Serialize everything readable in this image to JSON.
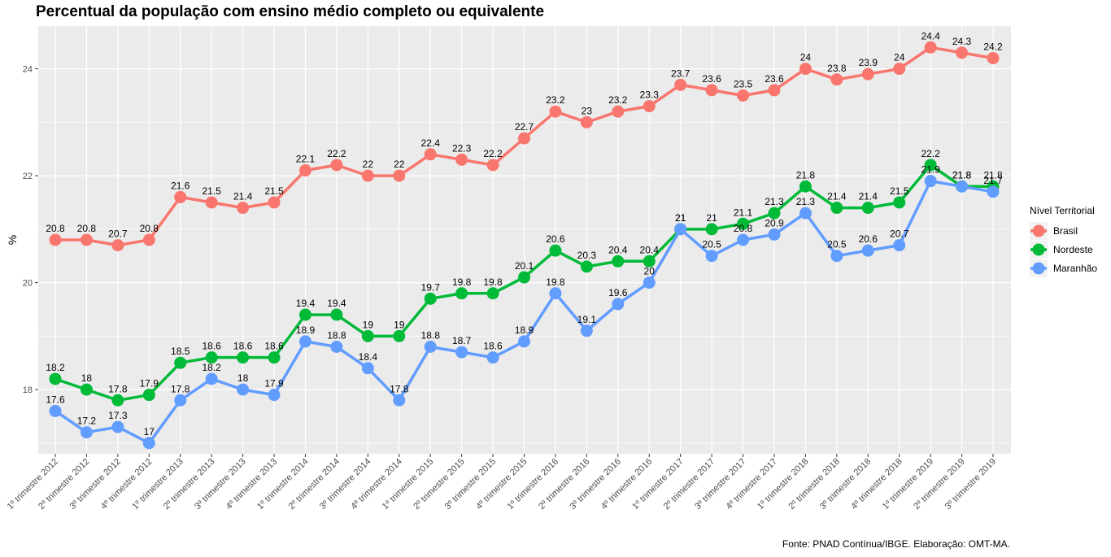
{
  "chart_data": {
    "type": "line",
    "title": "Percentual da população com ensino médio completo ou equivalente",
    "xlabel": "",
    "ylabel": "%",
    "ylim": [
      16.8,
      24.8
    ],
    "yticks": [
      18,
      20,
      22,
      24
    ],
    "grid": true,
    "caption": "Fonte: PNAD Contínua/IBGE. Elaboração: OMT-MA.",
    "legend": {
      "title": "Nível Territorial",
      "position": "right"
    },
    "categories": [
      "1º trimestre 2012",
      "2º trimestre 2012",
      "3º trimestre 2012",
      "4º trimestre 2012",
      "1º trimestre 2013",
      "2º trimestre 2013",
      "3º trimestre 2013",
      "4º trimestre 2013",
      "1º trimestre 2014",
      "2º trimestre 2014",
      "3º trimestre 2014",
      "4º trimestre 2014",
      "1º trimestre 2015",
      "2º trimestre 2015",
      "3º trimestre 2015",
      "4º trimestre 2015",
      "1º trimestre 2016",
      "2º trimestre 2016",
      "3º trimestre 2016",
      "4º trimestre 2016",
      "1º trimestre 2017",
      "2º trimestre 2017",
      "3º trimestre 2017",
      "4º trimestre 2017",
      "1º trimestre 2018",
      "2º trimestre 2018",
      "3º trimestre 2018",
      "4º trimestre 2018",
      "1º trimestre 2019",
      "2º trimestre 2019",
      "3º trimestre 2019"
    ],
    "series": [
      {
        "name": "Brasil",
        "color": "#F8766D",
        "values": [
          20.8,
          20.8,
          20.7,
          20.8,
          21.6,
          21.5,
          21.4,
          21.5,
          22.1,
          22.2,
          22,
          22,
          22.4,
          22.3,
          22.2,
          22.7,
          23.2,
          23,
          23.2,
          23.3,
          23.7,
          23.6,
          23.5,
          23.6,
          24,
          23.8,
          23.9,
          24,
          24.4,
          24.3,
          24.2
        ]
      },
      {
        "name": "Nordeste",
        "color": "#00BA38",
        "values": [
          18.2,
          18,
          17.8,
          17.9,
          18.5,
          18.6,
          18.6,
          18.6,
          19.4,
          19.4,
          19,
          19,
          19.7,
          19.8,
          19.8,
          20.1,
          20.6,
          20.3,
          20.4,
          20.4,
          21,
          21,
          21.1,
          21.3,
          21.8,
          21.4,
          21.4,
          21.5,
          22.2,
          21.8,
          21.8
        ]
      },
      {
        "name": "Maranhão",
        "color": "#619CFF",
        "values": [
          17.6,
          17.2,
          17.3,
          17,
          17.8,
          18.2,
          18,
          17.9,
          18.9,
          18.8,
          18.4,
          17.8,
          18.8,
          18.7,
          18.6,
          18.9,
          19.8,
          19.1,
          19.6,
          20,
          21,
          20.5,
          20.8,
          20.9,
          21.3,
          20.5,
          20.6,
          20.7,
          21.9,
          21.8,
          21.7
        ]
      }
    ]
  }
}
